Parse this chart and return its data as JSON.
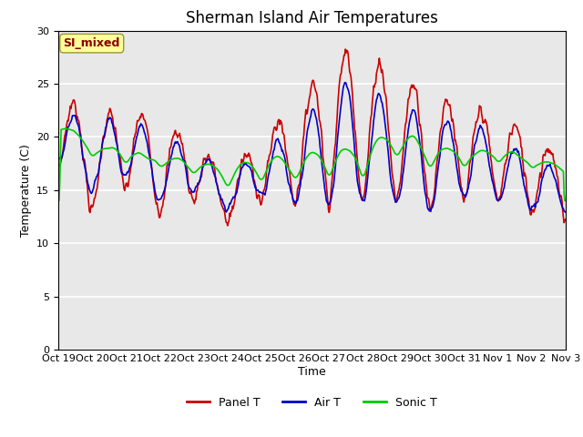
{
  "title": "Sherman Island Air Temperatures",
  "ylabel": "Temperature (C)",
  "xlabel": "Time",
  "annotation": "SI_mixed",
  "ylim": [
    0,
    30
  ],
  "yticks": [
    0,
    5,
    10,
    15,
    20,
    25,
    30
  ],
  "xtick_labels": [
    "Oct 19",
    "Oct 20",
    "Oct 21",
    "Oct 22",
    "Oct 23",
    "Oct 24",
    "Oct 25",
    "Oct 26",
    "Oct 27",
    "Oct 28",
    "Oct 29",
    "Oct 30",
    "Oct 31",
    "Nov 1",
    "Nov 2",
    "Nov 3"
  ],
  "panel_color": "#cc0000",
  "air_color": "#0000cc",
  "sonic_color": "#00cc00",
  "bg_color": "#e8e8e8",
  "fig_bg_color": "#ffffff",
  "line_width": 1.2,
  "title_fontsize": 12,
  "label_fontsize": 9,
  "tick_fontsize": 8,
  "legend_fontsize": 9
}
